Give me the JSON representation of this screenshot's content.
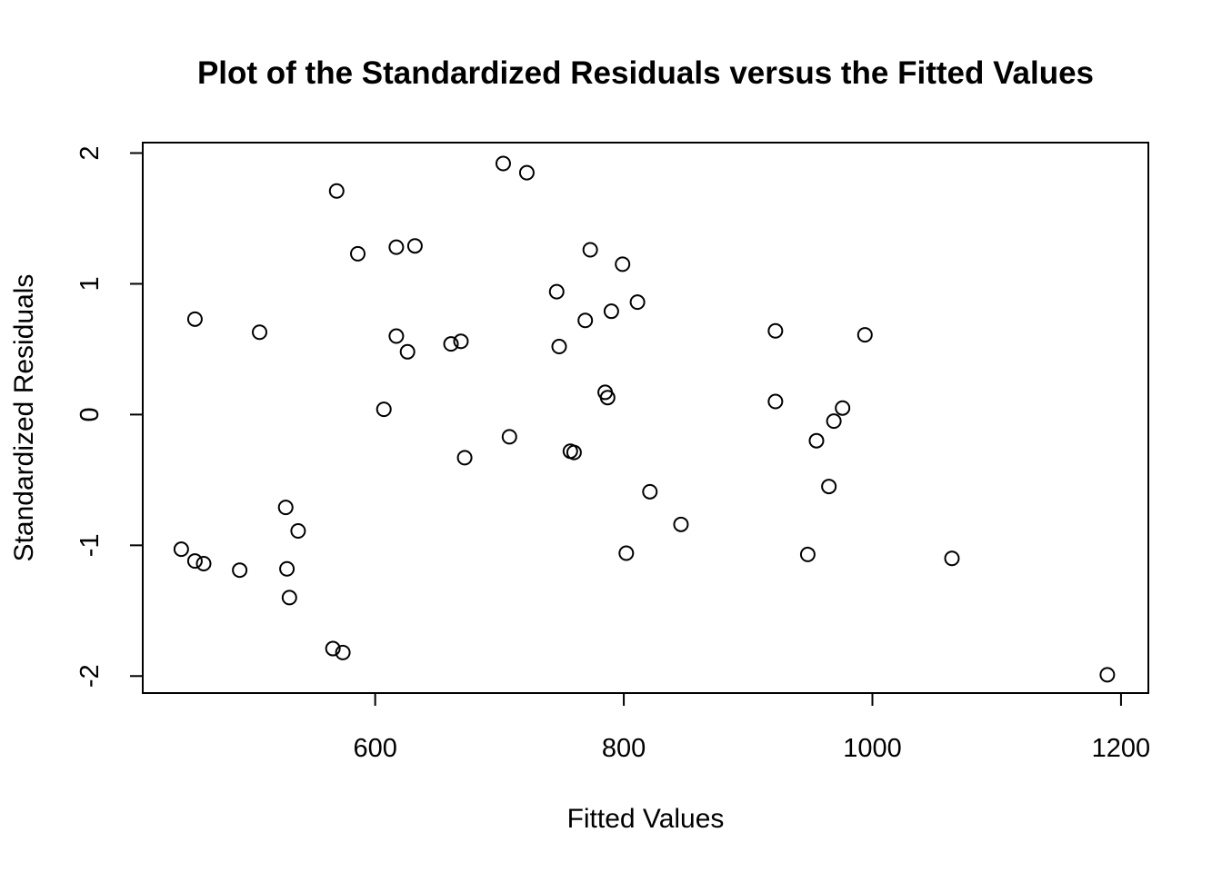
{
  "chart_data": {
    "type": "scatter",
    "title": "Plot of the Standardized Residuals versus the Fitted Values",
    "xlabel": "Fitted Values",
    "ylabel": "Standardized Residuals",
    "xlim": [
      413,
      1222
    ],
    "ylim": [
      -2.13,
      2.08
    ],
    "xticks": [
      600,
      800,
      1000,
      1200
    ],
    "yticks": [
      -2,
      -1,
      0,
      1,
      2
    ],
    "xtick_labels": [
      "600",
      "800",
      "1000",
      "1200"
    ],
    "ytick_labels": [
      "-2",
      "-1",
      "0",
      "1",
      "2"
    ],
    "grid": false,
    "legend": "none",
    "points": [
      {
        "x": 703,
        "y": 1.92
      },
      {
        "x": 722,
        "y": 1.85
      },
      {
        "x": 569,
        "y": 1.71
      },
      {
        "x": 586,
        "y": 1.23
      },
      {
        "x": 617,
        "y": 1.28
      },
      {
        "x": 632,
        "y": 1.29
      },
      {
        "x": 773,
        "y": 1.26
      },
      {
        "x": 799,
        "y": 1.15
      },
      {
        "x": 746,
        "y": 0.94
      },
      {
        "x": 811,
        "y": 0.86
      },
      {
        "x": 790,
        "y": 0.79
      },
      {
        "x": 769,
        "y": 0.72
      },
      {
        "x": 455,
        "y": 0.73
      },
      {
        "x": 507,
        "y": 0.63
      },
      {
        "x": 617,
        "y": 0.6
      },
      {
        "x": 626,
        "y": 0.48
      },
      {
        "x": 661,
        "y": 0.54
      },
      {
        "x": 669,
        "y": 0.56
      },
      {
        "x": 748,
        "y": 0.52
      },
      {
        "x": 922,
        "y": 0.64
      },
      {
        "x": 994,
        "y": 0.61
      },
      {
        "x": 785,
        "y": 0.17
      },
      {
        "x": 787,
        "y": 0.13
      },
      {
        "x": 922,
        "y": 0.1
      },
      {
        "x": 976,
        "y": 0.05
      },
      {
        "x": 607,
        "y": 0.04
      },
      {
        "x": 969,
        "y": -0.05
      },
      {
        "x": 955,
        "y": -0.2
      },
      {
        "x": 708,
        "y": -0.17
      },
      {
        "x": 757,
        "y": -0.28
      },
      {
        "x": 760,
        "y": -0.29
      },
      {
        "x": 672,
        "y": -0.33
      },
      {
        "x": 821,
        "y": -0.59
      },
      {
        "x": 965,
        "y": -0.55
      },
      {
        "x": 528,
        "y": -0.71
      },
      {
        "x": 538,
        "y": -0.89
      },
      {
        "x": 846,
        "y": -0.84
      },
      {
        "x": 444,
        "y": -1.03
      },
      {
        "x": 455,
        "y": -1.12
      },
      {
        "x": 462,
        "y": -1.14
      },
      {
        "x": 491,
        "y": -1.19
      },
      {
        "x": 529,
        "y": -1.18
      },
      {
        "x": 531,
        "y": -1.4
      },
      {
        "x": 802,
        "y": -1.06
      },
      {
        "x": 948,
        "y": -1.07
      },
      {
        "x": 1064,
        "y": -1.1
      },
      {
        "x": 566,
        "y": -1.79
      },
      {
        "x": 574,
        "y": -1.82
      },
      {
        "x": 1189,
        "y": -1.99
      }
    ]
  }
}
